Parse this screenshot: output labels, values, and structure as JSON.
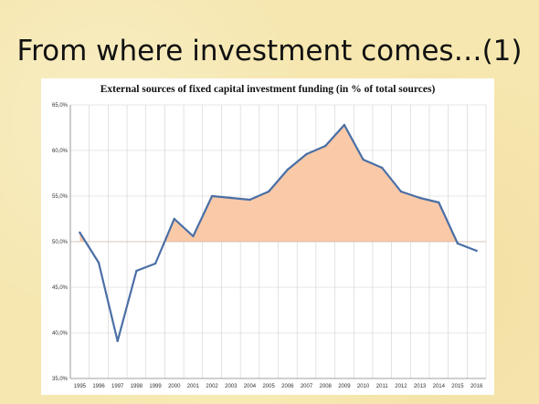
{
  "slide": {
    "title": "From where investment comes…(1)"
  },
  "chart_data": {
    "type": "line",
    "title": "External sources of fixed capital investment funding (in % of total sources)",
    "xlabel": "",
    "ylabel": "",
    "x": [
      "1995",
      "1996",
      "1997",
      "1998",
      "1999",
      "2000",
      "2001",
      "2002",
      "2003",
      "2004",
      "2005",
      "2006",
      "2007",
      "2008",
      "2009",
      "2010",
      "2011",
      "2012",
      "2013",
      "2014",
      "2015",
      "2016"
    ],
    "series": [
      {
        "values": [
          51.0,
          47.7,
          39.1,
          46.8,
          47.6,
          52.5,
          50.6,
          55.0,
          54.8,
          54.6,
          55.5,
          57.9,
          59.6,
          60.5,
          62.8,
          59.0,
          58.1,
          55.5,
          54.8,
          54.3,
          49.8,
          49.0
        ]
      }
    ],
    "ylim": [
      35,
      65
    ],
    "yticks": [
      "35,0%",
      "40,0%",
      "45,0%",
      "50,0%",
      "55,0%",
      "60,0%",
      "65,0%"
    ],
    "fill_baseline": 50,
    "grid": true,
    "colors": {
      "line": "#4a6fa5",
      "fill": "#f9c9a8",
      "grid": "#d0d0d0"
    }
  }
}
